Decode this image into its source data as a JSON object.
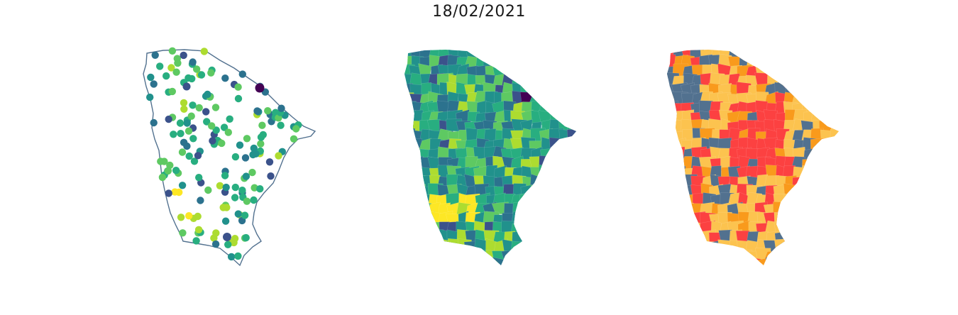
{
  "figure": {
    "title": "18/02/2021"
  },
  "palettes": {
    "viridis": [
      "#440154",
      "#3b528b",
      "#2c728e",
      "#21918c",
      "#28ae80",
      "#5ec962",
      "#addc30",
      "#fde725"
    ],
    "risk": {
      "low": "#52718f",
      "moderate": "#fcc34f",
      "high": "#f99a1c",
      "very_high": "#fc4141"
    }
  },
  "panels": [
    {
      "id": "points",
      "kind": "point-map",
      "outline_color": "#52718f"
    },
    {
      "id": "choropleth",
      "kind": "choropleth-viridis"
    },
    {
      "id": "classes",
      "kind": "choropleth-categorical"
    }
  ]
}
